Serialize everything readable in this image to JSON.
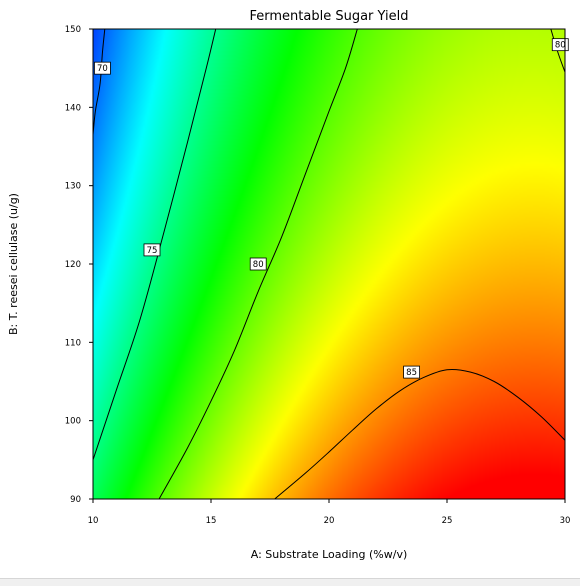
{
  "chart_data": {
    "type": "heatmap",
    "subtype": "contour",
    "title": "Fermentable Sugar Yield",
    "xlabel": "A: Substrate Loading (%w/v)",
    "ylabel": "B: T. reesei cellulase (u/g)",
    "xlim": [
      10,
      30
    ],
    "ylim": [
      90,
      150
    ],
    "xticks": [
      "10",
      "15",
      "20",
      "25",
      "30"
    ],
    "yticks": [
      "90",
      "100",
      "110",
      "120",
      "130",
      "140",
      "150"
    ],
    "colormap": [
      "#0000ff",
      "#00ffff",
      "#00ff00",
      "#ffff00",
      "#ff0000"
    ],
    "zrange": [
      66,
      89
    ],
    "contours": [
      {
        "level": 70,
        "label": "70",
        "points": [
          [
            10.0,
            136.5
          ],
          [
            10.1,
            139.5
          ],
          [
            10.3,
            143.0
          ],
          [
            10.4,
            147.0
          ],
          [
            10.5,
            150.0
          ]
        ],
        "label_at": [
          10.4,
          145.0
        ]
      },
      {
        "level": 75,
        "label": "75",
        "points": [
          [
            10.0,
            95.0
          ],
          [
            11.0,
            104.0
          ],
          [
            12.0,
            113.0
          ],
          [
            13.0,
            124.0
          ],
          [
            14.0,
            135.5
          ],
          [
            14.8,
            145.0
          ],
          [
            15.2,
            150.0
          ]
        ],
        "label_at": [
          12.5,
          121.8
        ]
      },
      {
        "level": 80,
        "label": "80",
        "points": [
          [
            12.8,
            90.0
          ],
          [
            14.0,
            96.5
          ],
          [
            15.0,
            102.5
          ],
          [
            16.0,
            109.0
          ],
          [
            17.0,
            116.5
          ],
          [
            18.0,
            123.5
          ],
          [
            19.0,
            131.5
          ],
          [
            20.0,
            139.5
          ],
          [
            20.7,
            145.0
          ],
          [
            21.2,
            150.0
          ]
        ],
        "label_at": [
          17.0,
          120.0
        ]
      },
      {
        "level": 80,
        "label": "80",
        "points": [
          [
            29.4,
            150.0
          ],
          [
            29.7,
            147.0
          ],
          [
            30.0,
            144.5
          ]
        ],
        "label_at": [
          29.8,
          148.0
        ]
      },
      {
        "level": 85,
        "label": "85",
        "points": [
          [
            17.7,
            90.0
          ],
          [
            19.0,
            93.3
          ],
          [
            20.0,
            96.0
          ],
          [
            21.0,
            98.8
          ],
          [
            22.0,
            101.5
          ],
          [
            23.0,
            103.8
          ],
          [
            24.0,
            105.5
          ],
          [
            25.0,
            106.5
          ],
          [
            26.0,
            106.2
          ],
          [
            27.0,
            105.0
          ],
          [
            28.0,
            103.0
          ],
          [
            29.0,
            100.5
          ],
          [
            30.0,
            97.5
          ]
        ],
        "label_at": [
          23.5,
          106.2
        ]
      }
    ]
  }
}
